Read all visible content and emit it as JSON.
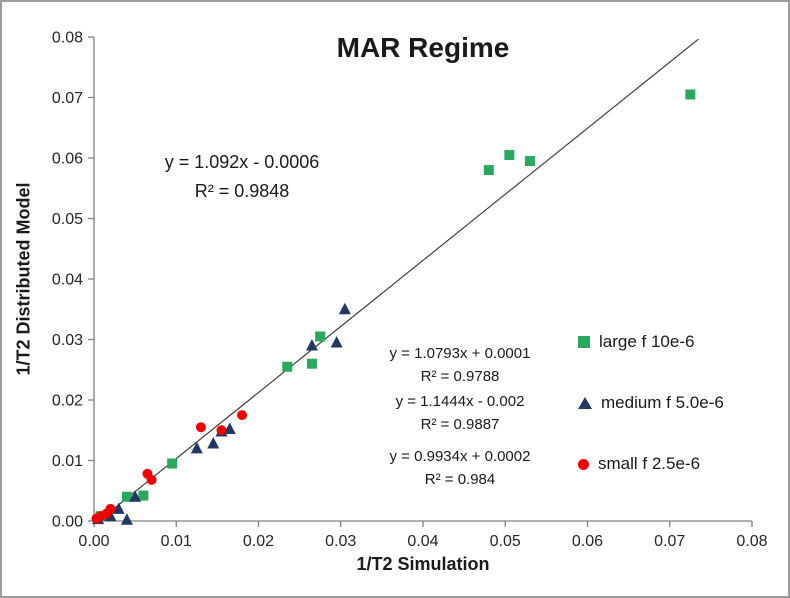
{
  "chart_data": {
    "type": "scatter",
    "title": "MAR Regime",
    "xlabel": "1/T2 Simulation",
    "ylabel": "1/T2 Distributed Model",
    "xlim": [
      0,
      0.08
    ],
    "ylim": [
      0,
      0.08
    ],
    "x_ticks": [
      0,
      0.01,
      0.02,
      0.03,
      0.04,
      0.05,
      0.06,
      0.07,
      0.08
    ],
    "y_ticks": [
      0,
      0.01,
      0.02,
      0.03,
      0.04,
      0.05,
      0.06,
      0.07,
      0.08
    ],
    "tick_decimals": 2,
    "grid": false,
    "legend_position": "right",
    "axis_color": "#808080",
    "text_color": "#262626",
    "series": [
      {
        "name": "large f 10e-6",
        "marker": "square",
        "color": "#2aa95e",
        "points": [
          [
            0.0008,
            0.0008
          ],
          [
            0.004,
            0.004
          ],
          [
            0.006,
            0.0042
          ],
          [
            0.0095,
            0.0095
          ],
          [
            0.0235,
            0.0255
          ],
          [
            0.0265,
            0.026
          ],
          [
            0.0275,
            0.0305
          ],
          [
            0.048,
            0.058
          ],
          [
            0.0505,
            0.0605
          ],
          [
            0.053,
            0.0595
          ],
          [
            0.0725,
            0.0705
          ]
        ]
      },
      {
        "name": "medium f 5.0e-6",
        "marker": "triangle",
        "color": "#1f3864",
        "points": [
          [
            0.0005,
            0.0003
          ],
          [
            0.002,
            0.0008
          ],
          [
            0.003,
            0.002
          ],
          [
            0.004,
            0.0002
          ],
          [
            0.005,
            0.004
          ],
          [
            0.0125,
            0.012
          ],
          [
            0.0145,
            0.0128
          ],
          [
            0.0155,
            0.0148
          ],
          [
            0.0165,
            0.0152
          ],
          [
            0.0265,
            0.029
          ],
          [
            0.0295,
            0.0295
          ],
          [
            0.0305,
            0.035
          ]
        ]
      },
      {
        "name": "small f 2.5e-6",
        "marker": "circle",
        "color": "#f20000",
        "points": [
          [
            0.0003,
            0.0004
          ],
          [
            0.0008,
            0.0008
          ],
          [
            0.0015,
            0.0012
          ],
          [
            0.002,
            0.002
          ],
          [
            0.0065,
            0.0078
          ],
          [
            0.007,
            0.0068
          ],
          [
            0.013,
            0.0155
          ],
          [
            0.0155,
            0.015
          ],
          [
            0.018,
            0.0175
          ]
        ]
      }
    ],
    "trendline": {
      "slope": 1.092,
      "intercept": -0.0006,
      "x_start": 0.0006,
      "x_end": 0.0735,
      "color": "#404040"
    },
    "annotations": {
      "main_equation": {
        "line1": "y = 1.092x - 0.0006",
        "line2": "R² = 0.9848"
      },
      "series_equations": [
        {
          "line1": "y = 1.0793x + 0.0001",
          "line2": "R² = 0.9788"
        },
        {
          "line1": "y = 1.1444x - 0.002",
          "line2": "R² = 0.9887"
        },
        {
          "line1": "y = 0.9934x + 0.0002",
          "line2": "R² = 0.984"
        }
      ]
    }
  }
}
